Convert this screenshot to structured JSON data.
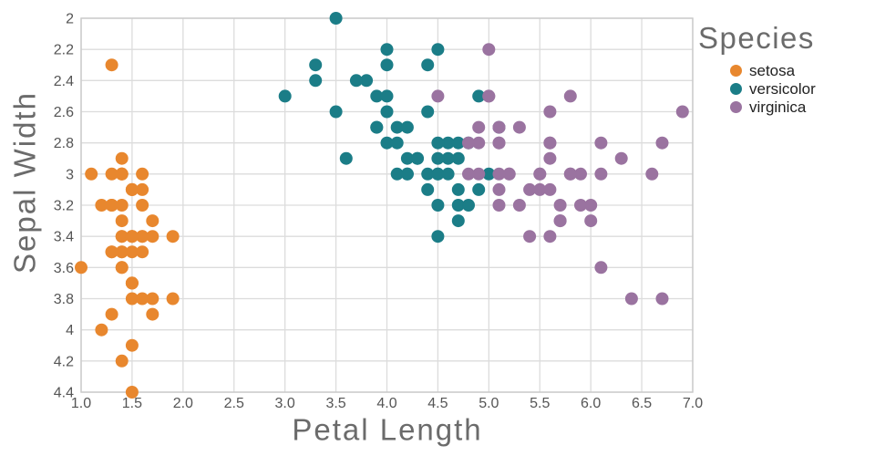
{
  "chart_data": {
    "type": "scatter",
    "xlabel": "Petal Length",
    "ylabel": "Sepal Width",
    "legend_title": "Species",
    "legend_position": "top-right",
    "grid": true,
    "xlim": [
      1.0,
      7.0
    ],
    "ylim": [
      2.0,
      4.4
    ],
    "y_axis_inverted": true,
    "x_ticks": [
      "1.0",
      "1.5",
      "2.0",
      "2.5",
      "3.0",
      "3.5",
      "4.0",
      "4.5",
      "5.0",
      "5.5",
      "6.0",
      "6.5",
      "7.0"
    ],
    "y_ticks": [
      "2",
      "2.2",
      "2.4",
      "2.6",
      "2.8",
      "3",
      "3.2",
      "3.4",
      "3.6",
      "3.8",
      "4",
      "4.2",
      "4.4"
    ],
    "marker_radius": 7,
    "colors": {
      "grid": "#dcdcdc",
      "plot_border": "#cbcbcb",
      "tick_text": "#555555",
      "title_text": "#6b6b6b",
      "legend_text": "#222222",
      "background": "#ffffff"
    },
    "series": [
      {
        "name": "setosa",
        "color": "#E8872E",
        "points": [
          [
            1.4,
            3.5
          ],
          [
            1.4,
            3.0
          ],
          [
            1.3,
            3.2
          ],
          [
            1.5,
            3.1
          ],
          [
            1.4,
            3.6
          ],
          [
            1.7,
            3.9
          ],
          [
            1.4,
            3.4
          ],
          [
            1.5,
            3.4
          ],
          [
            1.4,
            2.9
          ],
          [
            1.5,
            3.1
          ],
          [
            1.5,
            3.7
          ],
          [
            1.6,
            3.4
          ],
          [
            1.4,
            3.0
          ],
          [
            1.1,
            3.0
          ],
          [
            1.2,
            4.0
          ],
          [
            1.5,
            4.4
          ],
          [
            1.3,
            3.9
          ],
          [
            1.4,
            3.5
          ],
          [
            1.7,
            3.8
          ],
          [
            1.5,
            3.8
          ],
          [
            1.7,
            3.4
          ],
          [
            1.5,
            3.7
          ],
          [
            1.0,
            3.6
          ],
          [
            1.7,
            3.3
          ],
          [
            1.9,
            3.4
          ],
          [
            1.6,
            3.0
          ],
          [
            1.6,
            3.4
          ],
          [
            1.5,
            3.5
          ],
          [
            1.4,
            3.4
          ],
          [
            1.6,
            3.2
          ],
          [
            1.6,
            3.1
          ],
          [
            1.5,
            3.4
          ],
          [
            1.5,
            4.1
          ],
          [
            1.4,
            4.2
          ],
          [
            1.5,
            3.1
          ],
          [
            1.2,
            3.2
          ],
          [
            1.3,
            3.5
          ],
          [
            1.4,
            3.6
          ],
          [
            1.3,
            3.0
          ],
          [
            1.5,
            3.4
          ],
          [
            1.3,
            3.5
          ],
          [
            1.3,
            2.3
          ],
          [
            1.3,
            3.2
          ],
          [
            1.6,
            3.5
          ],
          [
            1.9,
            3.8
          ],
          [
            1.4,
            3.0
          ],
          [
            1.6,
            3.8
          ],
          [
            1.4,
            3.2
          ],
          [
            1.5,
            3.7
          ],
          [
            1.4,
            3.3
          ]
        ]
      },
      {
        "name": "versicolor",
        "color": "#1B7D87",
        "points": [
          [
            4.7,
            3.2
          ],
          [
            4.5,
            3.2
          ],
          [
            4.9,
            3.1
          ],
          [
            4.0,
            2.3
          ],
          [
            4.6,
            2.8
          ],
          [
            4.5,
            2.8
          ],
          [
            4.7,
            3.3
          ],
          [
            3.3,
            2.4
          ],
          [
            4.6,
            2.9
          ],
          [
            3.9,
            2.7
          ],
          [
            3.5,
            2.0
          ],
          [
            4.2,
            3.0
          ],
          [
            4.0,
            2.2
          ],
          [
            4.7,
            2.9
          ],
          [
            3.6,
            2.9
          ],
          [
            4.4,
            3.1
          ],
          [
            4.5,
            3.0
          ],
          [
            4.1,
            2.7
          ],
          [
            4.5,
            2.2
          ],
          [
            3.9,
            2.5
          ],
          [
            4.8,
            3.2
          ],
          [
            4.0,
            2.8
          ],
          [
            4.9,
            2.5
          ],
          [
            4.7,
            2.8
          ],
          [
            4.3,
            2.9
          ],
          [
            4.4,
            3.0
          ],
          [
            4.8,
            2.8
          ],
          [
            5.0,
            3.0
          ],
          [
            4.5,
            2.9
          ],
          [
            3.5,
            2.6
          ],
          [
            3.8,
            2.4
          ],
          [
            3.7,
            2.4
          ],
          [
            3.9,
            2.7
          ],
          [
            5.1,
            2.7
          ],
          [
            4.5,
            3.0
          ],
          [
            4.5,
            3.4
          ],
          [
            4.7,
            3.1
          ],
          [
            4.4,
            2.3
          ],
          [
            4.1,
            3.0
          ],
          [
            4.0,
            2.5
          ],
          [
            4.4,
            2.6
          ],
          [
            4.6,
            3.0
          ],
          [
            4.0,
            2.6
          ],
          [
            3.3,
            2.3
          ],
          [
            4.2,
            2.7
          ],
          [
            4.2,
            3.0
          ],
          [
            4.2,
            2.9
          ],
          [
            4.3,
            2.9
          ],
          [
            3.0,
            2.5
          ],
          [
            4.1,
            2.8
          ]
        ]
      },
      {
        "name": "virginica",
        "color": "#9A73A0",
        "points": [
          [
            6.0,
            3.3
          ],
          [
            5.1,
            2.7
          ],
          [
            5.9,
            3.0
          ],
          [
            5.6,
            2.9
          ],
          [
            5.8,
            3.0
          ],
          [
            6.6,
            3.0
          ],
          [
            4.5,
            2.5
          ],
          [
            6.3,
            2.9
          ],
          [
            5.8,
            2.5
          ],
          [
            6.1,
            3.6
          ],
          [
            5.1,
            3.2
          ],
          [
            5.3,
            2.7
          ],
          [
            5.5,
            3.0
          ],
          [
            5.0,
            2.5
          ],
          [
            5.1,
            2.8
          ],
          [
            5.3,
            3.2
          ],
          [
            5.5,
            3.0
          ],
          [
            6.7,
            3.8
          ],
          [
            6.9,
            2.6
          ],
          [
            5.0,
            2.2
          ],
          [
            5.7,
            3.2
          ],
          [
            4.9,
            2.8
          ],
          [
            6.7,
            2.8
          ],
          [
            4.9,
            2.7
          ],
          [
            5.7,
            3.3
          ],
          [
            6.0,
            3.2
          ],
          [
            4.8,
            2.8
          ],
          [
            4.9,
            3.0
          ],
          [
            5.6,
            2.8
          ],
          [
            5.8,
            3.0
          ],
          [
            6.1,
            2.8
          ],
          [
            6.4,
            3.8
          ],
          [
            5.6,
            2.8
          ],
          [
            5.1,
            2.8
          ],
          [
            5.6,
            2.6
          ],
          [
            6.1,
            3.0
          ],
          [
            5.6,
            3.4
          ],
          [
            5.5,
            3.1
          ],
          [
            4.8,
            3.0
          ],
          [
            5.4,
            3.1
          ],
          [
            5.6,
            3.1
          ],
          [
            5.1,
            3.1
          ],
          [
            5.1,
            2.7
          ],
          [
            5.9,
            3.2
          ],
          [
            5.7,
            3.3
          ],
          [
            5.2,
            3.0
          ],
          [
            5.0,
            2.5
          ],
          [
            5.2,
            3.0
          ],
          [
            5.4,
            3.4
          ],
          [
            5.1,
            3.0
          ]
        ]
      }
    ]
  }
}
